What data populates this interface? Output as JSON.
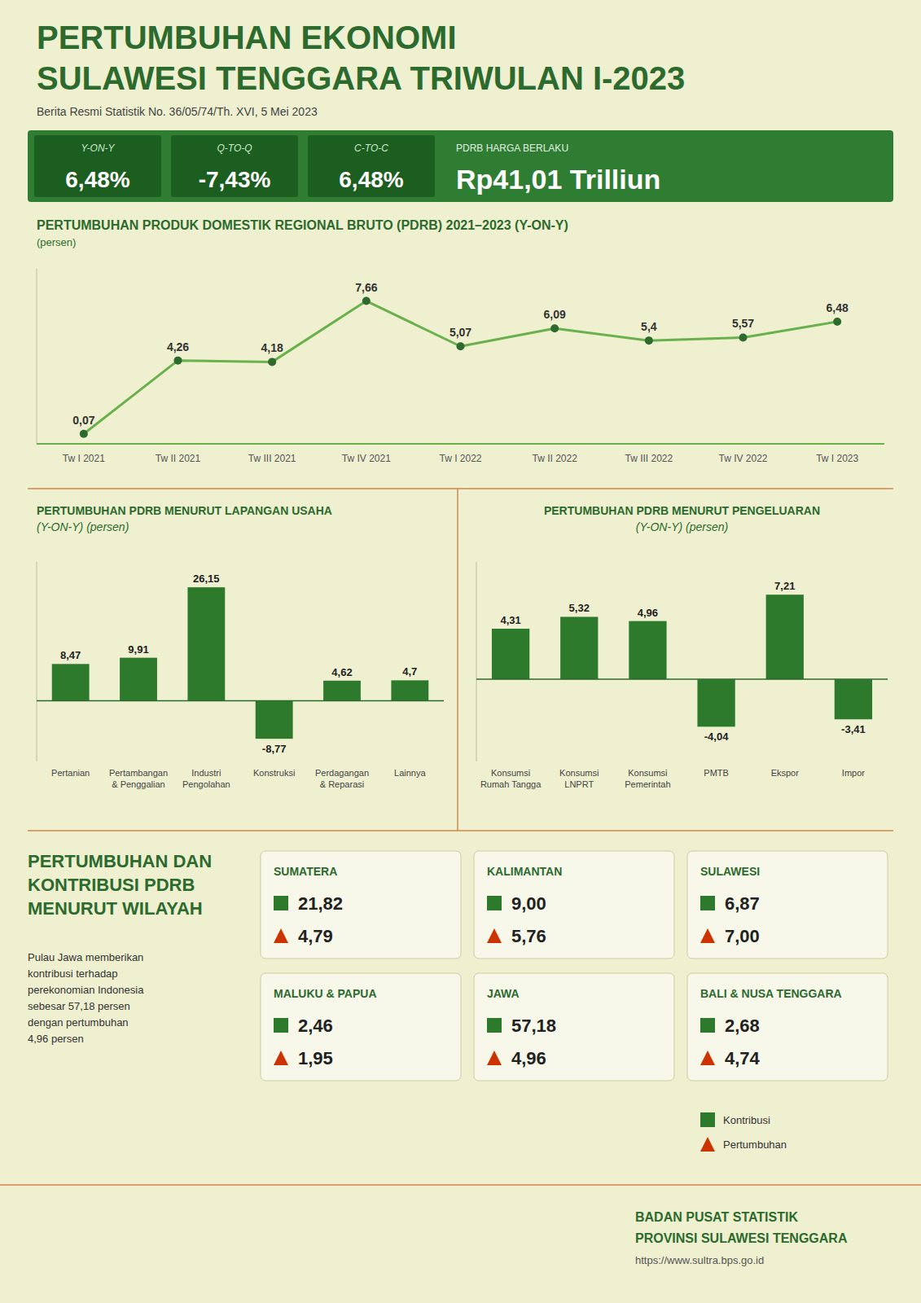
{
  "title": "PERTUMBUHAN EKONOMI\nSULAWESI TENGGARA TRIWULAN I-2023",
  "subtitle": "Berita Resmi Statistik No. 36/05/74/Th. XVI, 5 Mei 2023",
  "annotations": [
    {
      "label": "Y-ON-Y",
      "value": 6.48,
      "value_label": "6,48%"
    },
    {
      "label": "Q-TO-Q",
      "value": -7.43,
      "value_label": "-7,43%"
    },
    {
      "label": "C-TO-C",
      "value": 6.48,
      "value_label": "6,48%"
    },
    {
      "label": "PDRB HARGA BERLAKU",
      "value": 41.01,
      "value_label": "Rp41,01 Trilliun"
    },
    {
      "text": "BADAN PUSAT STATISTIK"
    },
    {
      "text": "PROVINSI SULAWESI TENGGARA"
    },
    {
      "text": "https://www.sultra.bps.go.id"
    }
  ],
  "chart_data": [
    {
      "type": "line",
      "title": "PERTUMBUHAN PRODUK DOMESTIK REGIONAL BRUTO (PDRB) 2021–2023 (Y-ON-Y)",
      "subtitle": "(persen)",
      "categories": [
        "Tw I 2021",
        "Tw II 2021",
        "Tw III 2021",
        "Tw IV 2021",
        "Tw I 2022",
        "Tw II 2022",
        "Tw III 2022",
        "Tw IV 2022",
        "Tw I 2023"
      ],
      "values": [
        0.07,
        4.26,
        4.18,
        7.66,
        5.07,
        6.09,
        5.4,
        5.57,
        6.48
      ],
      "value_labels": [
        "0,07",
        "4,26",
        "4,18",
        "7,66",
        "5,07",
        "6,09",
        "5,4",
        "5,57",
        "6,48"
      ],
      "color": "#6ab04c",
      "marker": "circle",
      "ylim": [
        -0.5,
        9.5
      ],
      "data_labels": true,
      "tick_labels": "x",
      "grid": false
    },
    {
      "type": "bar",
      "title": "PERTUMBUHAN PDRB MENURUT LAPANGAN USAHA",
      "subtitle": "(Y-ON-Y) (persen)",
      "categories": [
        "Pertanian",
        "Pertambangan\n& Penggalian",
        "Industri\nPengolahan",
        "Konstruksi",
        "Perdagangan\n& Reparasi",
        "Lainnya"
      ],
      "values": [
        8.47,
        9.91,
        26.15,
        -8.77,
        4.62,
        4.7
      ],
      "value_labels": [
        "8,47",
        "9,91",
        "26,15",
        "-8,77",
        "4,62",
        "4,7"
      ],
      "color": "#2d7a2d",
      "ylim": [
        -14,
        32
      ],
      "data_labels": true,
      "tick_labels": "x",
      "grid": false
    },
    {
      "type": "bar",
      "title": "PERTUMBUHAN PDRB MENURUT PENGELUARAN",
      "subtitle": "(Y-ON-Y) (persen)",
      "categories": [
        "Konsumsi\nRumah Tangga",
        "Konsumsi\nLNPRT",
        "Konsumsi\nPemerintah",
        "PMTB",
        "Ekspor",
        "Impor"
      ],
      "values": [
        4.31,
        5.32,
        4.96,
        -4.04,
        7.21,
        -3.41
      ],
      "value_labels": [
        "4,31",
        "5,32",
        "4,96",
        "-4,04",
        "7,21",
        "-3,41"
      ],
      "color": "#2d7a2d",
      "ylim": [
        -7,
        10
      ],
      "data_labels": true,
      "tick_labels": "x",
      "grid": false
    },
    {
      "type": "table",
      "title": "PERTUMBUHAN DAN\nKONTRIBUSI PDRB\nMENURUT WILAYAH",
      "annotations": [
        "Pulau Jawa memberikan\nkontribusi terhadap\nperekonomian Indonesia\nsebesar 57,18 persen\ndengan pertumbuhan\n4,96 persen"
      ],
      "categories": [
        "SUMATERA",
        "KALIMANTAN",
        "SULAWESI",
        "MALUKU & PAPUA",
        "JAWA",
        "BALI & NUSA TENGGARA"
      ],
      "series": [
        {
          "name": "Kontribusi",
          "color": "#2d7a2d",
          "marker": "square",
          "values": [
            21.82,
            9.0,
            6.87,
            2.46,
            57.18,
            2.68
          ],
          "value_labels": [
            "21,82",
            "9,00",
            "6,87",
            "2,46",
            "57,18",
            "2,68"
          ]
        },
        {
          "name": "Pertumbuhan",
          "color": "#cc3300",
          "marker": "triangle",
          "values": [
            4.79,
            5.76,
            7.0,
            1.95,
            4.96,
            4.74
          ],
          "value_labels": [
            "4,79",
            "5,76",
            "7,00",
            "1,95",
            "4,96",
            "4,74"
          ]
        }
      ],
      "data_labels": true,
      "legend": "lower right"
    }
  ]
}
